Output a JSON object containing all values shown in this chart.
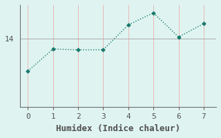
{
  "x": [
    0,
    1,
    2,
    3,
    4,
    5,
    6,
    7
  ],
  "y": [
    13.2,
    13.75,
    13.73,
    13.73,
    14.35,
    14.65,
    14.05,
    14.38
  ],
  "line_color": "#1a7a6e",
  "background_color": "#dff4f0",
  "grid_color_h": "#aaaaaa",
  "grid_color_v": "#e8b8b8",
  "xlabel": "Humidex (Indice chaleur)",
  "xlabel_fontsize": 9,
  "ytick_labels": [
    "14"
  ],
  "ytick_values": [
    14
  ],
  "xtick_values": [
    0,
    1,
    2,
    3,
    4,
    5,
    6,
    7
  ],
  "ylim": [
    12.3,
    14.85
  ],
  "xlim": [
    -0.3,
    7.5
  ],
  "marker": "D",
  "marker_size": 2.5,
  "linewidth": 1.0,
  "spine_color": "#707070",
  "tick_color": "#505050",
  "linestyle": ":"
}
